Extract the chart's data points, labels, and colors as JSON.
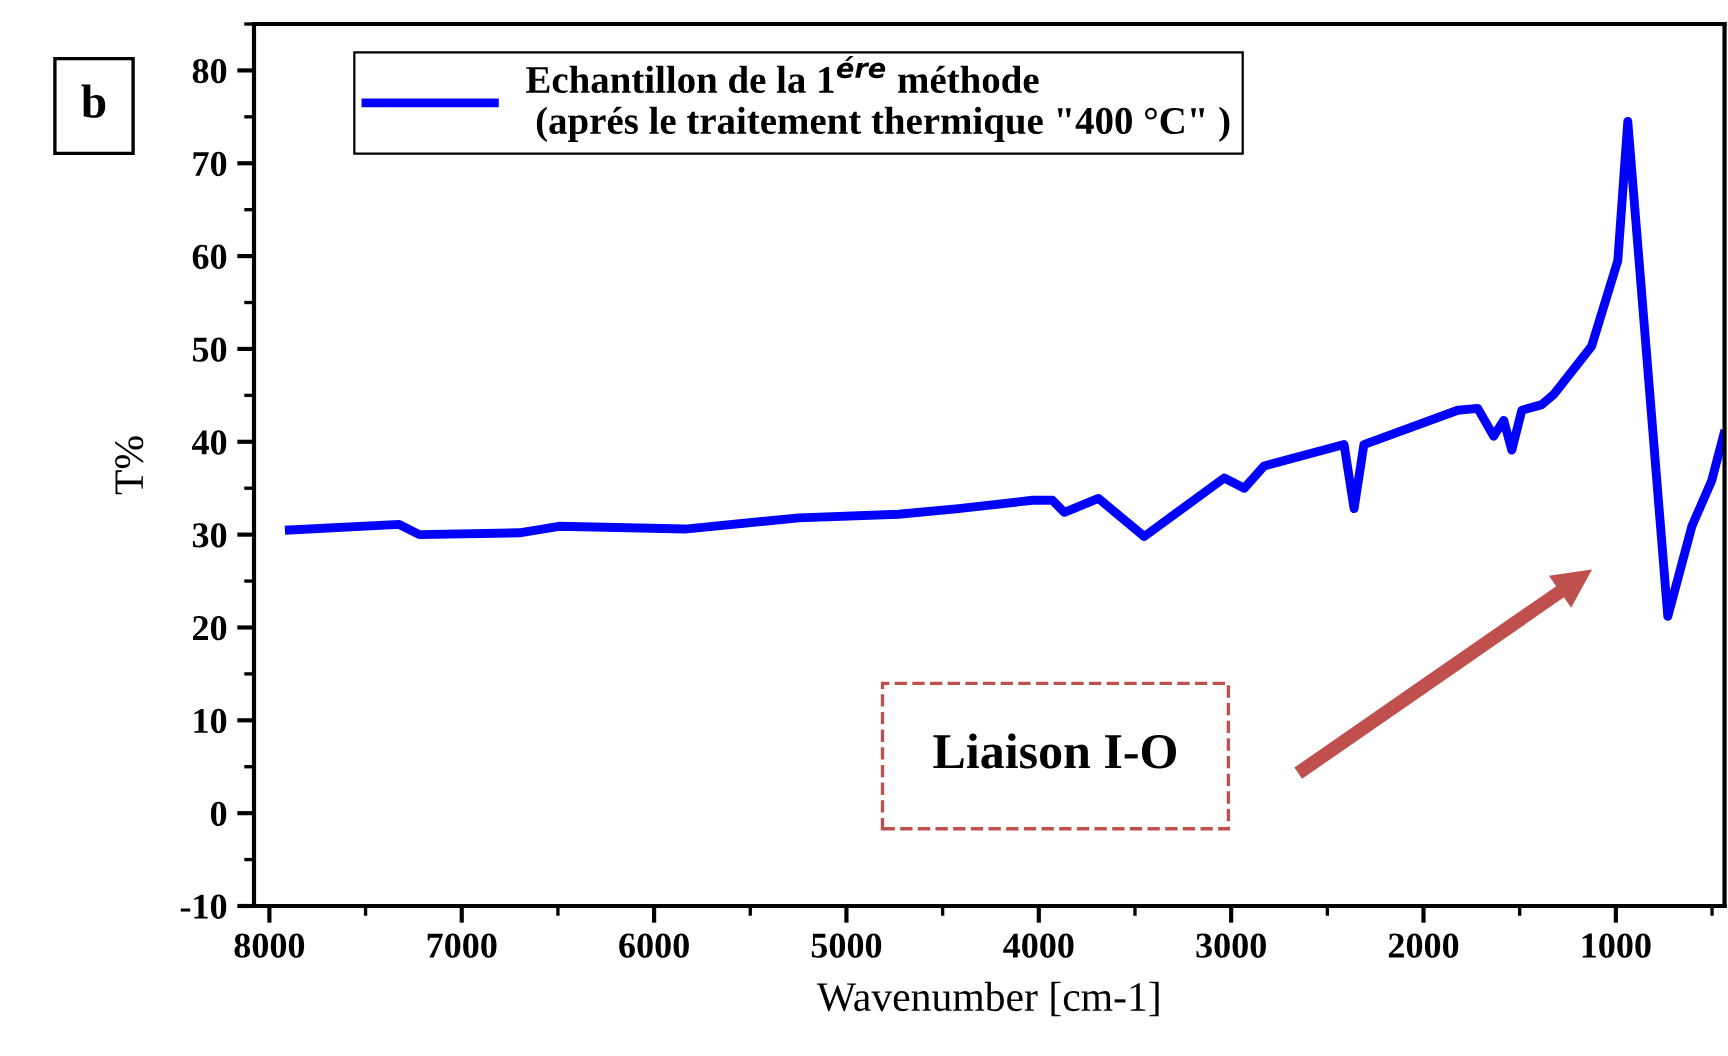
{
  "chart_data": {
    "type": "line",
    "xlabel": "Wavenumber [cm-1]",
    "ylabel": "T%",
    "xlim": [
      8080,
      435
    ],
    "ylim": [
      -10,
      85
    ],
    "xticks": [
      8000,
      7000,
      6000,
      5000,
      4000,
      3000,
      2000,
      1000
    ],
    "yticks": [
      -10,
      0,
      10,
      20,
      30,
      40,
      50,
      60,
      70,
      80
    ],
    "grid": false,
    "legend": "top left",
    "series": [
      {
        "name": "Echantillon de la 1$^{ére}$ méthode\n (aprés le traitement thermique \"400 °C\" )",
        "color": "#0000ff",
        "x": [
          7896,
          7325,
          7220,
          6700,
          6494,
          5840,
          5248,
          4729,
          4417,
          4033,
          3929,
          3867,
          3690,
          3452,
          3036,
          2932,
          2829,
          2413,
          2361,
          2310,
          1822,
          1718,
          1635,
          1583,
          1541,
          1489,
          1385,
          1323,
          1126,
          990,
          938,
          730,
          605,
          502,
          439
        ],
        "values": [
          30.5,
          31.1,
          30.0,
          30.2,
          30.9,
          30.6,
          31.8,
          32.2,
          32.8,
          33.7,
          33.7,
          32.4,
          33.9,
          29.8,
          36.1,
          35.0,
          37.4,
          39.7,
          32.8,
          39.7,
          43.4,
          43.6,
          40.6,
          42.3,
          39.1,
          43.4,
          44.0,
          45.1,
          50.3,
          59.5,
          74.5,
          21.2,
          30.9,
          35.8,
          40.8
        ]
      }
    ],
    "annotations": [
      "b",
      "Liaison I-O"
    ]
  }
}
